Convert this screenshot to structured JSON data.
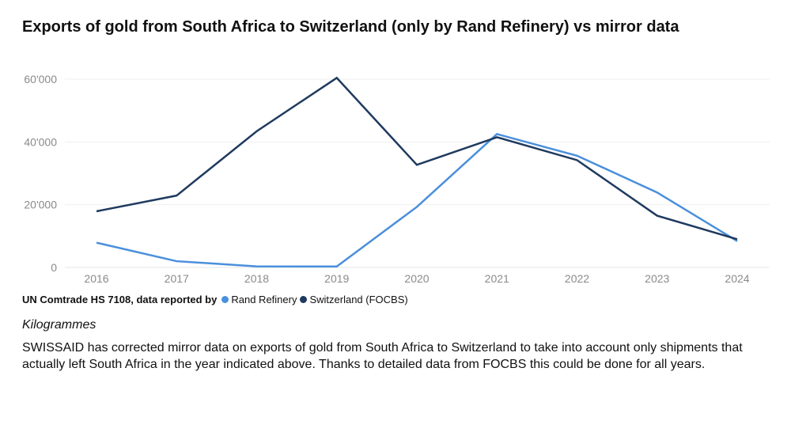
{
  "title": "Exports of gold from South Africa to Switzerland (only by Rand Refinery) vs mirror data",
  "legend": {
    "title": "UN Comtrade HS 7108, data reported by",
    "items": [
      {
        "label": "Rand Refinery",
        "color": "#4a8fdc"
      },
      {
        "label": "Switzerland (FOCBS)",
        "color": "#1f3a5f"
      }
    ]
  },
  "unit": "Kilogrammes",
  "note": "SWISSAID has corrected mirror data on exports of gold from South Africa to Switzerland to take into account only shipments that actually left South Africa in the year indicated above. Thanks to detailed data from FOCBS this could be done for all years.",
  "chart_data": {
    "type": "line",
    "title": "Exports of gold from South Africa to Switzerland (only by Rand Refinery) vs mirror data",
    "xlabel": "",
    "ylabel": "Kilogrammes",
    "x": [
      "2016",
      "2017",
      "2018",
      "2019",
      "2020",
      "2021",
      "2022",
      "2023",
      "2024"
    ],
    "ylim": [
      0,
      60000
    ],
    "yticks": [
      0,
      20000,
      40000,
      60000
    ],
    "ytick_labels": [
      "0",
      "20'000",
      "40'000",
      "60'000"
    ],
    "grid": true,
    "legend_position": "bottom-left",
    "series": [
      {
        "name": "Rand Refinery",
        "color": "#4a8fdc",
        "values": [
          7900,
          2000,
          350,
          300,
          19300,
          42500,
          35600,
          23900,
          8400
        ]
      },
      {
        "name": "Switzerland (FOCBS)",
        "color": "#1f3a5f",
        "values": [
          17900,
          22900,
          43400,
          60400,
          32700,
          41500,
          34200,
          16500,
          9000
        ]
      }
    ]
  }
}
